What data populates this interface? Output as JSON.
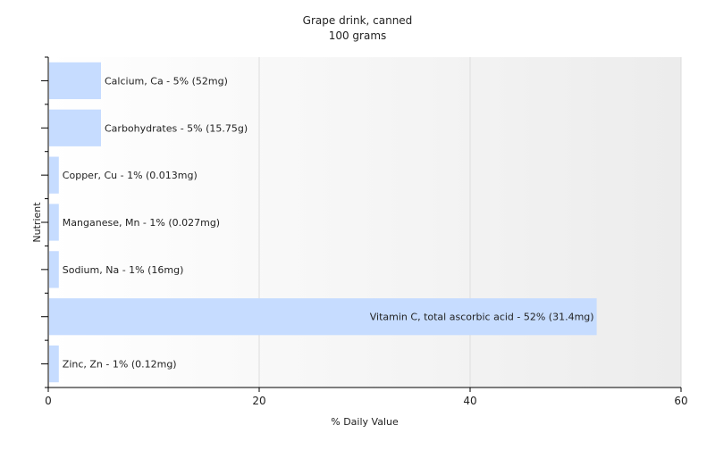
{
  "chart_data": {
    "type": "bar",
    "orientation": "horizontal",
    "title": "Grape drink, canned",
    "subtitle": "100 grams",
    "xlabel": "% Daily Value",
    "ylabel": "Nutrient",
    "xlim": [
      0,
      60
    ],
    "xticks": [
      0,
      20,
      40,
      60
    ],
    "grid": true,
    "bar_color": "#c6dcff",
    "categories": [
      "Calcium, Ca",
      "Carbohydrates",
      "Copper, Cu",
      "Manganese, Mn",
      "Sodium, Na",
      "Vitamin C, total ascorbic acid",
      "Zinc, Zn"
    ],
    "values": [
      5,
      5,
      1,
      1,
      1,
      52,
      1
    ],
    "labels": [
      "Calcium, Ca - 5% (52mg)",
      "Carbohydrates - 5% (15.75g)",
      "Copper, Cu - 1% (0.013mg)",
      "Manganese, Mn - 1% (0.027mg)",
      "Sodium, Na - 1% (16mg)",
      "Vitamin C, total ascorbic acid - 52% (31.4mg)",
      "Zinc, Zn - 1% (0.12mg)"
    ]
  }
}
